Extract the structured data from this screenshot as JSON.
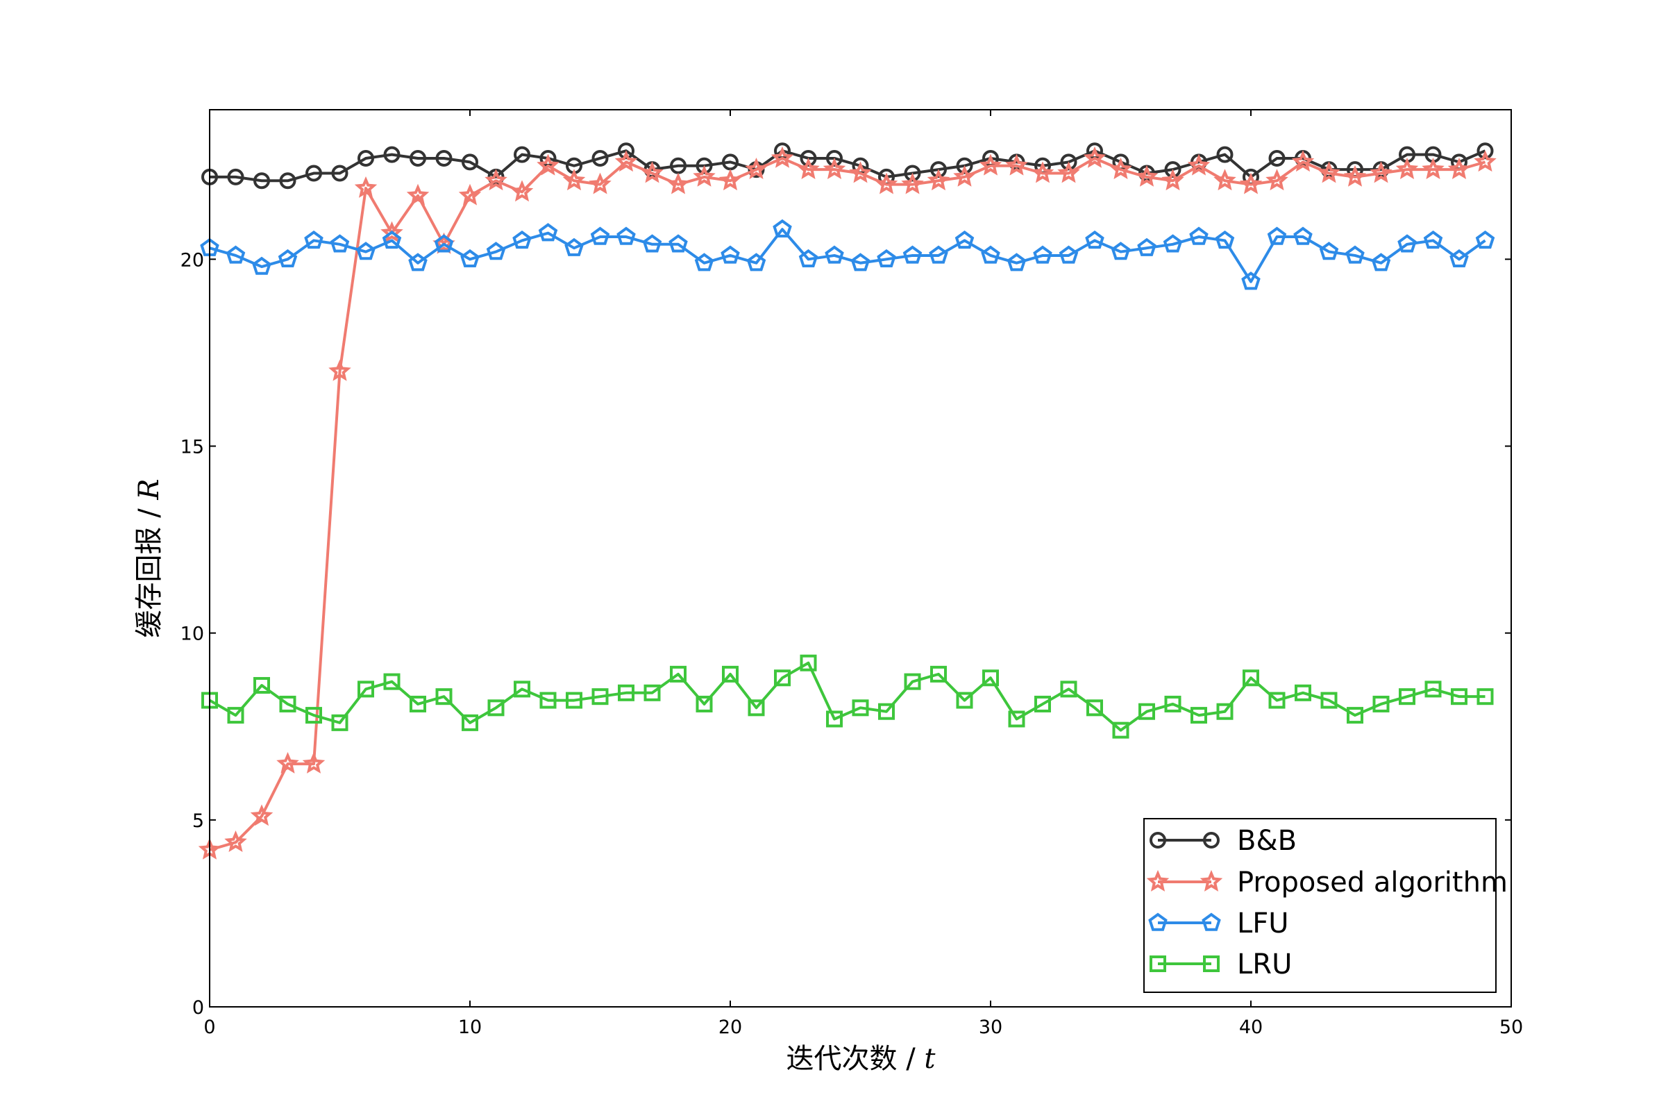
{
  "chart_data": {
    "type": "line",
    "title": "",
    "xlabel": "迭代次数",
    "xlabel_var": "t",
    "ylabel": "缓存回报",
    "ylabel_var": "R",
    "label_separator": " / ",
    "xlim": [
      0,
      50
    ],
    "ylim": [
      0,
      24
    ],
    "xticks": [
      0,
      10,
      20,
      30,
      40,
      50
    ],
    "yticks": [
      0,
      5,
      10,
      15,
      20
    ],
    "grid": false,
    "legend_position": "bottom-right",
    "x": [
      0,
      1,
      2,
      3,
      4,
      5,
      6,
      7,
      8,
      9,
      10,
      11,
      12,
      13,
      14,
      15,
      16,
      17,
      18,
      19,
      20,
      21,
      22,
      23,
      24,
      25,
      26,
      27,
      28,
      29,
      30,
      31,
      32,
      33,
      34,
      35,
      36,
      37,
      38,
      39,
      40,
      41,
      42,
      43,
      44,
      45,
      46,
      47,
      48,
      49
    ],
    "series": [
      {
        "name": "B&B",
        "color": "#333333",
        "marker": "circle",
        "values": [
          22.2,
          22.2,
          22.1,
          22.1,
          22.3,
          22.3,
          22.7,
          22.8,
          22.7,
          22.7,
          22.6,
          22.2,
          22.8,
          22.7,
          22.5,
          22.7,
          22.9,
          22.4,
          22.5,
          22.5,
          22.6,
          22.4,
          22.9,
          22.7,
          22.7,
          22.5,
          22.2,
          22.3,
          22.4,
          22.5,
          22.7,
          22.6,
          22.5,
          22.6,
          22.9,
          22.6,
          22.3,
          22.4,
          22.6,
          22.8,
          22.2,
          22.7,
          22.7,
          22.4,
          22.4,
          22.4,
          22.8,
          22.8,
          22.6,
          22.9
        ]
      },
      {
        "name": "Proposed algorithm",
        "color": "#f07b70",
        "marker": "star",
        "values": [
          4.2,
          4.4,
          5.1,
          6.5,
          6.5,
          17.0,
          21.9,
          20.7,
          21.7,
          20.4,
          21.7,
          22.1,
          21.8,
          22.5,
          22.1,
          22.0,
          22.6,
          22.3,
          22.0,
          22.2,
          22.1,
          22.4,
          22.7,
          22.4,
          22.4,
          22.3,
          22.0,
          22.0,
          22.1,
          22.2,
          22.5,
          22.5,
          22.3,
          22.3,
          22.7,
          22.4,
          22.2,
          22.1,
          22.5,
          22.1,
          22.0,
          22.1,
          22.6,
          22.3,
          22.2,
          22.3,
          22.4,
          22.4,
          22.4,
          22.6
        ]
      },
      {
        "name": "LFU",
        "color": "#2d8be8",
        "marker": "pentagon",
        "values": [
          20.3,
          20.1,
          19.8,
          20.0,
          20.5,
          20.4,
          20.2,
          20.5,
          19.9,
          20.4,
          20.0,
          20.2,
          20.5,
          20.7,
          20.3,
          20.6,
          20.6,
          20.4,
          20.4,
          19.9,
          20.1,
          19.9,
          20.8,
          20.0,
          20.1,
          19.9,
          20.0,
          20.1,
          20.1,
          20.5,
          20.1,
          19.9,
          20.1,
          20.1,
          20.5,
          20.2,
          20.3,
          20.4,
          20.6,
          20.5,
          19.4,
          20.6,
          20.6,
          20.2,
          20.1,
          19.9,
          20.4,
          20.5,
          20.0,
          20.5
        ]
      },
      {
        "name": "LRU",
        "color": "#3ec63c",
        "marker": "square",
        "values": [
          8.2,
          7.8,
          8.6,
          8.1,
          7.8,
          7.6,
          8.5,
          8.7,
          8.1,
          8.3,
          7.6,
          8.0,
          8.5,
          8.2,
          8.2,
          8.3,
          8.4,
          8.4,
          8.9,
          8.1,
          8.9,
          8.0,
          8.8,
          9.2,
          7.7,
          8.0,
          7.9,
          8.7,
          8.9,
          8.2,
          8.8,
          7.7,
          8.1,
          8.5,
          8.0,
          7.4,
          7.9,
          8.1,
          7.8,
          7.9,
          8.8,
          8.2,
          8.4,
          8.2,
          7.8,
          8.1,
          8.3,
          8.5,
          8.3,
          8.3
        ]
      }
    ]
  }
}
